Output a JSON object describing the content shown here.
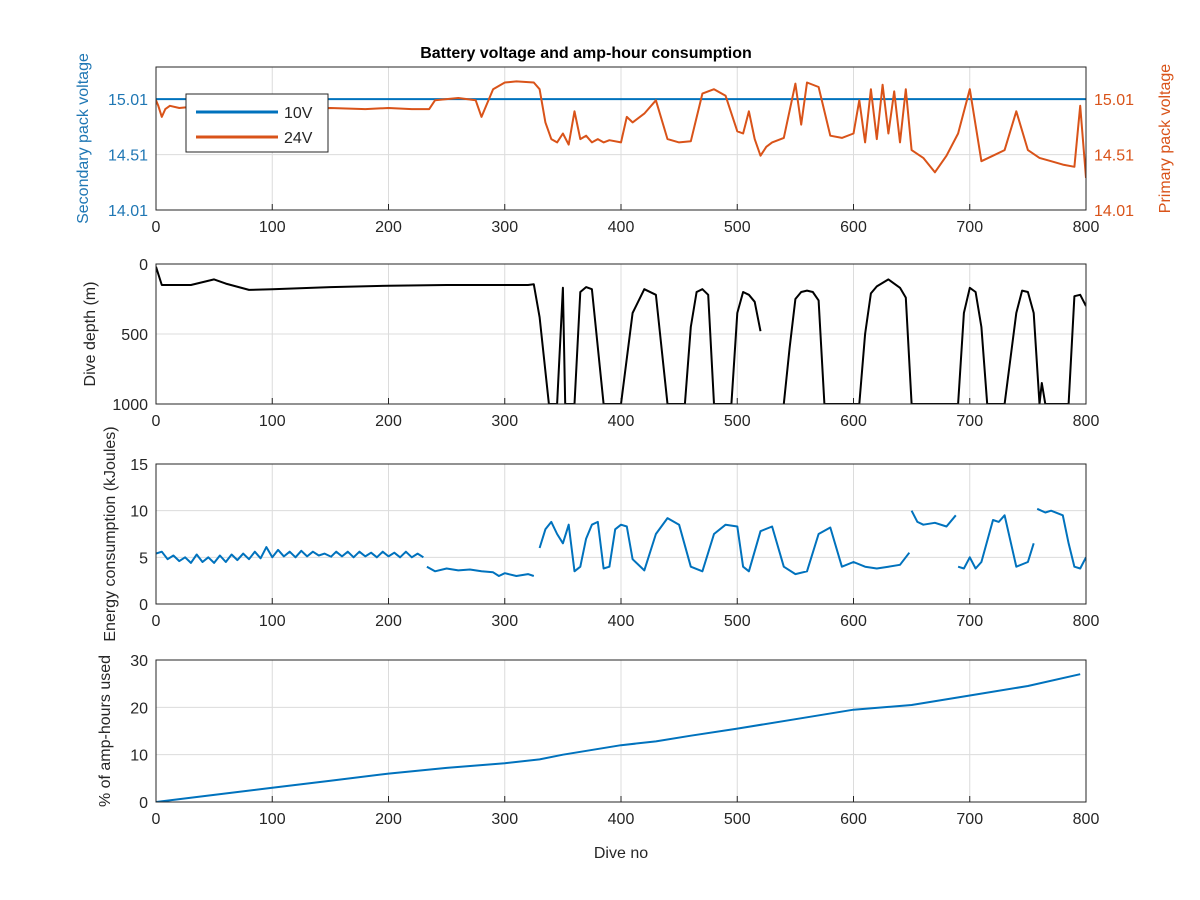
{
  "chart_data": [
    {
      "type": "line",
      "title": "Battery voltage and amp-hour consumption",
      "xlabel": "",
      "ylabel_left": "Secondary pack voltage",
      "ylabel_right": "Primary pack voltage",
      "xlim": [
        0,
        800
      ],
      "ylim_left": [
        14.01,
        15.3
      ],
      "ylim_right": [
        14.01,
        15.3
      ],
      "xticks": [
        "0",
        "100",
        "200",
        "300",
        "400",
        "500",
        "600",
        "700",
        "800"
      ],
      "yticks_left": [
        "14.01",
        "14.51",
        "15.01"
      ],
      "yticks_right": [
        "14.01",
        "14.51",
        "15.01"
      ],
      "grid": true,
      "legend_position": "top-left",
      "series": [
        {
          "name": "10V",
          "axis": "left",
          "color": "#0072bd",
          "x": [
            0,
            800
          ],
          "y": [
            15.01,
            15.01
          ]
        },
        {
          "name": "24V",
          "axis": "right",
          "color": "#d95319",
          "x": [
            0,
            2,
            5,
            8,
            12,
            20,
            30,
            40,
            60,
            80,
            100,
            120,
            150,
            180,
            200,
            220,
            235,
            240,
            260,
            275,
            280,
            290,
            300,
            310,
            325,
            330,
            335,
            340,
            345,
            350,
            355,
            360,
            365,
            370,
            375,
            380,
            385,
            390,
            400,
            405,
            410,
            420,
            430,
            440,
            450,
            460,
            470,
            480,
            490,
            500,
            505,
            510,
            515,
            520,
            525,
            530,
            540,
            550,
            555,
            560,
            570,
            580,
            590,
            600,
            605,
            610,
            615,
            620,
            625,
            630,
            635,
            640,
            645,
            650,
            660,
            670,
            680,
            690,
            700,
            710,
            720,
            730,
            740,
            750,
            760,
            770,
            780,
            790,
            795,
            800
          ],
          "y": [
            15.0,
            14.95,
            14.85,
            14.92,
            14.95,
            14.93,
            14.94,
            14.94,
            14.94,
            14.93,
            14.93,
            14.92,
            14.93,
            14.92,
            14.93,
            14.92,
            14.92,
            15.0,
            15.02,
            15.0,
            14.85,
            15.1,
            15.16,
            15.17,
            15.16,
            15.1,
            14.8,
            14.65,
            14.62,
            14.7,
            14.6,
            14.9,
            14.65,
            14.68,
            14.62,
            14.65,
            14.62,
            14.64,
            14.62,
            14.85,
            14.8,
            14.88,
            15.0,
            14.65,
            14.62,
            14.63,
            15.06,
            15.1,
            15.04,
            14.72,
            14.7,
            14.9,
            14.65,
            14.5,
            14.58,
            14.62,
            14.66,
            15.15,
            14.78,
            15.16,
            15.12,
            14.68,
            14.66,
            14.7,
            15.0,
            14.62,
            15.1,
            14.65,
            15.14,
            14.7,
            15.08,
            14.62,
            15.1,
            14.55,
            14.48,
            14.35,
            14.5,
            14.7,
            15.1,
            14.45,
            14.5,
            14.55,
            14.9,
            14.55,
            14.48,
            14.45,
            14.42,
            14.4,
            14.95,
            14.3
          ]
        }
      ]
    },
    {
      "type": "line",
      "title": "",
      "xlabel": "",
      "ylabel": "Dive depth (m)",
      "xlim": [
        0,
        800
      ],
      "ylim": [
        0,
        1000
      ],
      "y_reversed": true,
      "xticks": [
        "0",
        "100",
        "200",
        "300",
        "400",
        "500",
        "600",
        "700",
        "800"
      ],
      "yticks": [
        "0",
        "500",
        "1000"
      ],
      "grid": true,
      "series": [
        {
          "name": "",
          "color": "#000000",
          "x": [
            0,
            5,
            30,
            50,
            60,
            80,
            100,
            150,
            200,
            250,
            300,
            320,
            325,
            330,
            338,
            345,
            350,
            352,
            355,
            360,
            365,
            370,
            375,
            385,
            395,
            400,
            410,
            420,
            430,
            440,
            450,
            455,
            460,
            465,
            470,
            475,
            480,
            485,
            490,
            495,
            500,
            505,
            510,
            515,
            520
          ],
          "y": [
            20,
            150,
            150,
            110,
            140,
            185,
            180,
            165,
            155,
            150,
            150,
            150,
            145,
            380,
            1000,
            1000,
            170,
            1000,
            1000,
            1000,
            200,
            165,
            180,
            1000,
            1000,
            1000,
            350,
            180,
            220,
            1000,
            1000,
            1000,
            450,
            200,
            180,
            220,
            1000,
            1000,
            1000,
            1000,
            350,
            200,
            220,
            270,
            480
          ]
        },
        {
          "name": "",
          "color": "#000000",
          "x": [
            540,
            545,
            550,
            555,
            560,
            565,
            570,
            575,
            580,
            590,
            600,
            605,
            610,
            615,
            620,
            630,
            640,
            645,
            650,
            655,
            660,
            670,
            680,
            690,
            695,
            700,
            705,
            710,
            715,
            720,
            730,
            740,
            745,
            750,
            755,
            760,
            762,
            765,
            770,
            780,
            785,
            790,
            795,
            800
          ],
          "y": [
            1000,
            600,
            250,
            200,
            190,
            200,
            260,
            1000,
            1000,
            1000,
            1000,
            1000,
            500,
            210,
            160,
            110,
            170,
            240,
            1000,
            1000,
            1000,
            1000,
            1000,
            1000,
            350,
            170,
            200,
            450,
            1000,
            1000,
            1000,
            350,
            190,
            200,
            350,
            1000,
            850,
            1000,
            1000,
            1000,
            1000,
            230,
            220,
            300
          ]
        }
      ]
    },
    {
      "type": "line",
      "title": "",
      "xlabel": "",
      "ylabel": "Energy consumption (kJoules)",
      "xlim": [
        0,
        800
      ],
      "ylim": [
        0,
        15
      ],
      "xticks": [
        "0",
        "100",
        "200",
        "300",
        "400",
        "500",
        "600",
        "700",
        "800"
      ],
      "yticks": [
        "0",
        "5",
        "10",
        "15"
      ],
      "grid": true,
      "series": [
        {
          "name": "",
          "color": "#0072bd",
          "x": [
            0,
            5,
            10,
            15,
            20,
            25,
            30,
            35,
            40,
            45,
            50,
            55,
            60,
            65,
            70,
            75,
            80,
            85,
            90,
            95,
            100,
            105,
            110,
            115,
            120,
            125,
            130,
            135,
            140,
            145,
            150
          ],
          "y": [
            5.4,
            5.6,
            4.8,
            5.2,
            4.6,
            5.0,
            4.4,
            5.3,
            4.5,
            5.0,
            4.4,
            5.2,
            4.5,
            5.3,
            4.7,
            5.4,
            4.8,
            5.6,
            4.9,
            6.1,
            5.0,
            5.8,
            5.1,
            5.6,
            5.0,
            5.7,
            5.1,
            5.6,
            5.2,
            5.4,
            5.1
          ]
        },
        {
          "name": "",
          "color": "#0072bd",
          "x": [
            150,
            155,
            160,
            165,
            170,
            175,
            180,
            185,
            190,
            195,
            200,
            205,
            210,
            215,
            220,
            225,
            230
          ],
          "y": [
            5.0,
            5.6,
            5.1,
            5.6,
            5.0,
            5.6,
            5.1,
            5.5,
            5.0,
            5.6,
            5.1,
            5.5,
            5.0,
            5.6,
            5.0,
            5.4,
            5.0
          ]
        },
        {
          "name": "",
          "color": "#0072bd",
          "x": [
            233,
            240,
            250,
            260,
            270,
            280,
            290,
            295,
            300,
            310,
            320,
            325
          ],
          "y": [
            4.0,
            3.5,
            3.8,
            3.6,
            3.7,
            3.5,
            3.4,
            3.0,
            3.3,
            3.0,
            3.2,
            3.0
          ]
        },
        {
          "name": "",
          "color": "#0072bd",
          "x": [
            330,
            335,
            340,
            345,
            350,
            355,
            360,
            365,
            370,
            375,
            380,
            385,
            390,
            395,
            400,
            405,
            410,
            420,
            430,
            440,
            450,
            460,
            470,
            480,
            490,
            500,
            505,
            510,
            520,
            530,
            540,
            550,
            560,
            570,
            580,
            590,
            600,
            610,
            620,
            630,
            640,
            648
          ],
          "y": [
            6.0,
            8.0,
            8.8,
            7.5,
            6.5,
            8.5,
            3.5,
            4.0,
            7.0,
            8.5,
            8.8,
            3.8,
            4.0,
            8.0,
            8.5,
            8.3,
            4.8,
            3.6,
            7.5,
            9.2,
            8.5,
            4.0,
            3.5,
            7.5,
            8.5,
            8.3,
            4.0,
            3.5,
            7.8,
            8.3,
            4.0,
            3.2,
            3.5,
            7.5,
            8.2,
            4.0,
            4.5,
            4.0,
            3.8,
            4.0,
            4.2,
            5.5
          ]
        },
        {
          "name": "",
          "color": "#0072bd",
          "x": [
            650,
            655,
            660,
            670,
            680,
            688
          ],
          "y": [
            10.0,
            8.8,
            8.5,
            8.7,
            8.3,
            9.5
          ]
        },
        {
          "name": "",
          "color": "#0072bd",
          "x": [
            690,
            695,
            700,
            705,
            710,
            720,
            725,
            730,
            740,
            750,
            755
          ],
          "y": [
            4.0,
            3.8,
            5.0,
            3.8,
            4.5,
            9.0,
            8.8,
            9.5,
            4.0,
            4.5,
            6.5
          ]
        },
        {
          "name": "",
          "color": "#0072bd",
          "x": [
            758,
            765,
            770,
            780,
            785,
            790,
            795,
            800
          ],
          "y": [
            10.2,
            9.8,
            10.0,
            9.5,
            6.5,
            4.0,
            3.8,
            5.0
          ]
        }
      ]
    },
    {
      "type": "line",
      "title": "",
      "xlabel": "Dive no",
      "ylabel": "% of amp-hours used",
      "xlim": [
        0,
        800
      ],
      "ylim": [
        0,
        30
      ],
      "xticks": [
        "0",
        "100",
        "200",
        "300",
        "400",
        "500",
        "600",
        "700",
        "800"
      ],
      "yticks": [
        "0",
        "10",
        "20",
        "30"
      ],
      "grid": true,
      "series": [
        {
          "name": "",
          "color": "#0072bd",
          "x": [
            0,
            50,
            100,
            150,
            200,
            250,
            300,
            330,
            350,
            400,
            430,
            460,
            500,
            550,
            600,
            650,
            700,
            750,
            795
          ],
          "y": [
            0,
            1.5,
            3.0,
            4.5,
            6.0,
            7.2,
            8.2,
            9.0,
            10.0,
            12.0,
            12.8,
            14.0,
            15.5,
            17.5,
            19.5,
            20.5,
            22.5,
            24.5,
            27.0
          ]
        }
      ]
    }
  ]
}
